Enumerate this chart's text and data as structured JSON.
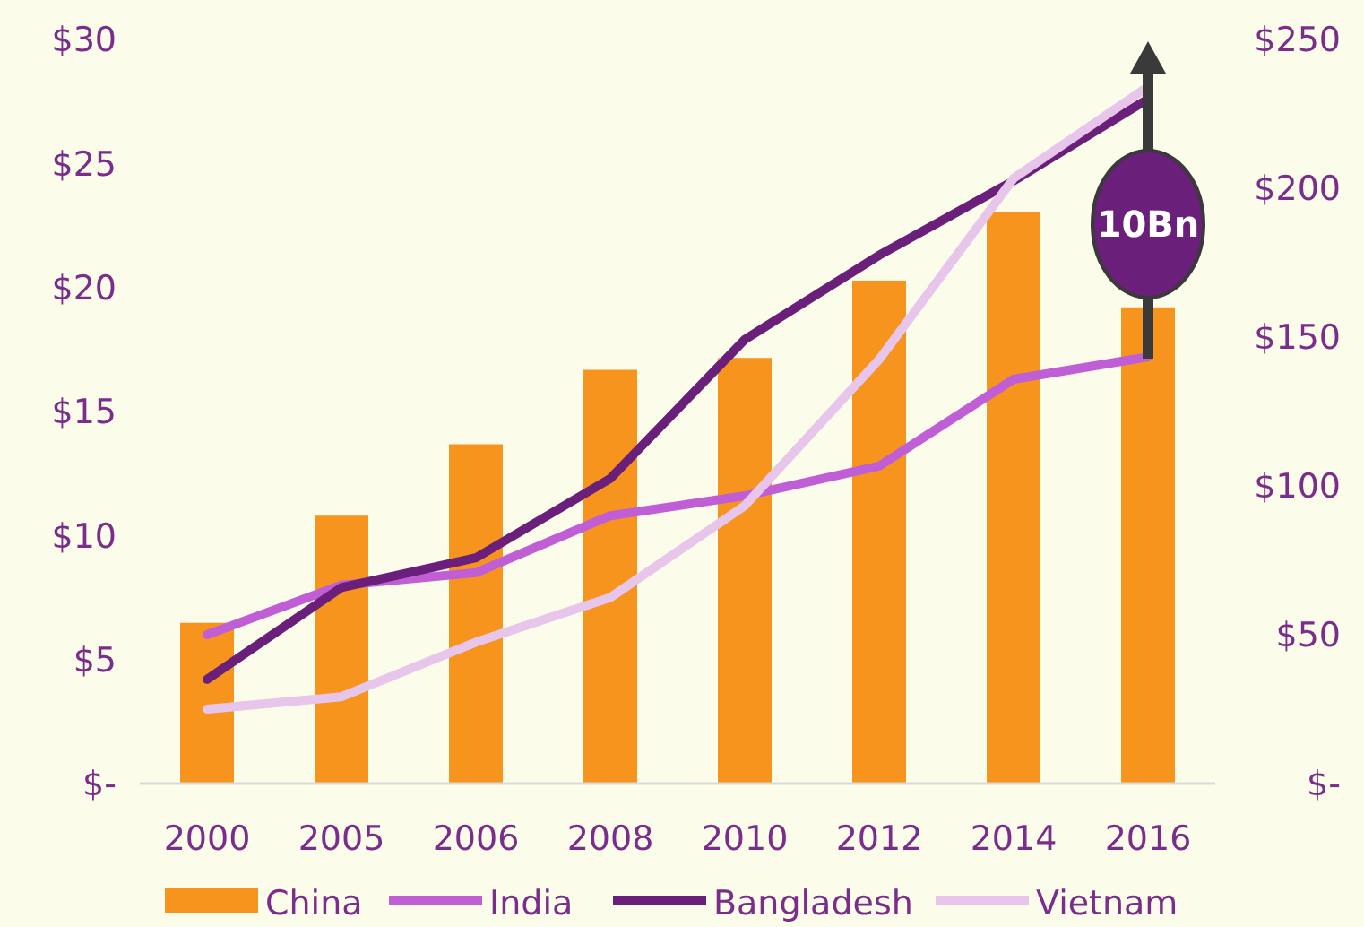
{
  "chart_data": {
    "type": "bar",
    "categories": [
      "2000",
      "2005",
      "2006",
      "2008",
      "2010",
      "2012",
      "2014",
      "2016"
    ],
    "series": [
      {
        "name": "China",
        "axis": "y2",
        "color": "#f7941d",
        "values": [
          54,
          90,
          114,
          139,
          143,
          169,
          192,
          160
        ]
      },
      {
        "name": "India",
        "type": "line",
        "axis": "y",
        "color": "#c05ed6",
        "values": [
          6.0,
          8.0,
          8.5,
          10.8,
          11.6,
          12.8,
          16.3,
          17.2
        ]
      },
      {
        "name": "Bangladesh",
        "type": "line",
        "axis": "y",
        "color": "#6a1f7a",
        "values": [
          4.2,
          7.9,
          9.1,
          12.3,
          17.9,
          21.3,
          24.3,
          27.6
        ]
      },
      {
        "name": "Vietnam",
        "type": "line",
        "axis": "y",
        "color": "#e8c6ec",
        "values": [
          3.0,
          3.5,
          5.7,
          7.5,
          11.2,
          17.1,
          24.4,
          28.1
        ]
      }
    ],
    "ylim": [
      0,
      30
    ],
    "yticks": [
      {
        "value": 0,
        "label": "$-"
      },
      {
        "value": 5,
        "label": "$5"
      },
      {
        "value": 10,
        "label": "$10"
      },
      {
        "value": 15,
        "label": "$15"
      },
      {
        "value": 20,
        "label": "$20"
      },
      {
        "value": 25,
        "label": "$25"
      },
      {
        "value": 30,
        "label": "$30"
      }
    ],
    "y2lim": [
      0,
      250
    ],
    "y2ticks": [
      {
        "value": 0,
        "label": "$-"
      },
      {
        "value": 50,
        "label": "$50"
      },
      {
        "value": 100,
        "label": "$100"
      },
      {
        "value": 150,
        "label": "$150"
      },
      {
        "value": 200,
        "label": "$200"
      },
      {
        "value": 250,
        "label": "$250"
      }
    ],
    "annotations": [
      "10Bn"
    ],
    "legend": "bottom",
    "grid": false,
    "marker": "none",
    "line_style": "solid"
  }
}
